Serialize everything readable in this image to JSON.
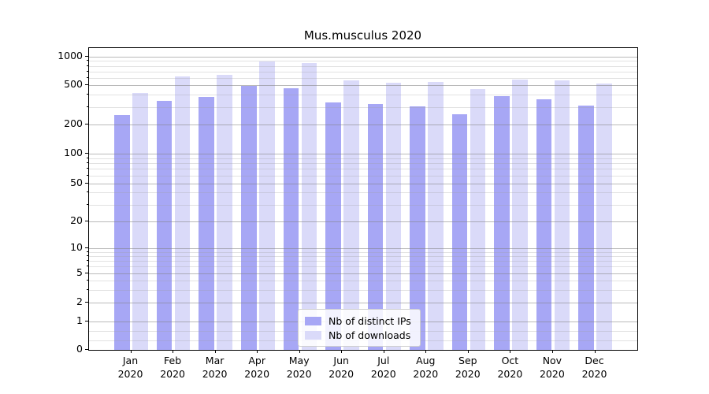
{
  "chart_data": {
    "type": "bar",
    "title": "Mus.musculus 2020",
    "categories": [
      "Jan",
      "Feb",
      "Mar",
      "Apr",
      "May",
      "Jun",
      "Jul",
      "Aug",
      "Sep",
      "Oct",
      "Nov",
      "Dec"
    ],
    "x_tick_second_line": "2020",
    "series": [
      {
        "name": "Nb of distinct IPs",
        "color": "#a7a7f5",
        "values": [
          250,
          345,
          380,
          495,
          470,
          335,
          320,
          305,
          255,
          385,
          360,
          310
        ]
      },
      {
        "name": "Nb of downloads",
        "color": "#dadaf9",
        "values": [
          415,
          620,
          640,
          890,
          850,
          560,
          530,
          545,
          460,
          575,
          560,
          520
        ]
      }
    ],
    "yscale": "symlog",
    "ylim": [
      0,
      1200
    ],
    "y_major_ticks": [
      1000,
      500,
      200,
      100,
      50,
      20,
      10,
      5,
      2,
      1,
      0
    ],
    "y_minor_gridlines": [
      900,
      800,
      700,
      600,
      400,
      300,
      90,
      80,
      70,
      60,
      40,
      30,
      9,
      8,
      7,
      6,
      4,
      3,
      0.67,
      0.33
    ],
    "grid": true,
    "legend_position": "lower center",
    "colors": {
      "bar_distinct_ips": "#a7a7f5",
      "bar_downloads": "#dadaf9",
      "axis": "#000000",
      "grid_major": "#b9b9b9",
      "grid_minor": "#e2e2e2"
    }
  }
}
